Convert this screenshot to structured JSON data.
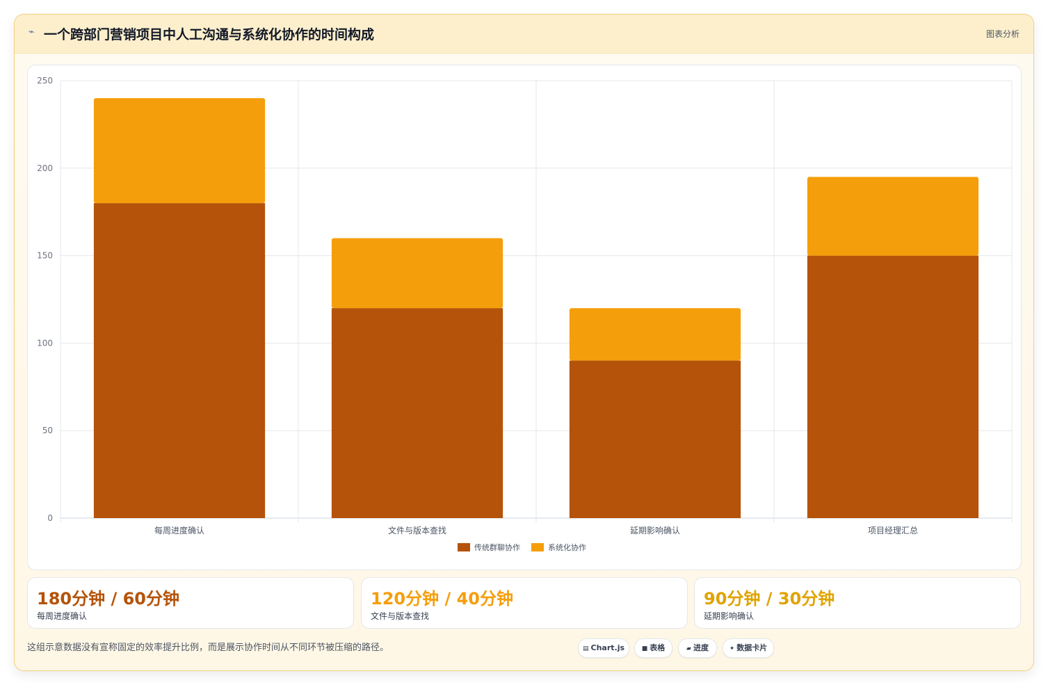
{
  "header": {
    "icon": "pulse-icon",
    "title": "一个跨部门营销项目中人工沟通与系统化协作的时间构成",
    "link_label": "图表分析"
  },
  "chart_data": {
    "type": "bar",
    "stacked": true,
    "categories": [
      "每周进度确认",
      "文件与版本查找",
      "延期影响确认",
      "项目经理汇总"
    ],
    "series": [
      {
        "name": "传统群聊协作",
        "values": [
          180,
          120,
          90,
          150
        ],
        "color": "#b45309"
      },
      {
        "name": "系统化协作",
        "values": [
          60,
          40,
          30,
          45
        ],
        "color": "#f59e0b"
      }
    ],
    "ylim": [
      0,
      250
    ],
    "yticks": [
      0,
      50,
      100,
      150,
      200,
      250
    ],
    "grid": true,
    "legend": "bottom"
  },
  "stats": [
    {
      "value": "180分钟 / 60分钟",
      "label": "每周进度确认",
      "color": "#b45309"
    },
    {
      "value": "120分钟 / 40分钟",
      "label": "文件与版本查找",
      "color": "#f59e0b"
    },
    {
      "value": "90分钟 / 30分钟",
      "label": "延期影响确认",
      "color": "#e0a300"
    }
  ],
  "footnote": "这组示意数据没有宣称固定的效率提升比例，而是展示协作时间从不同环节被压缩的路径。",
  "pills": [
    {
      "icon": "chart-icon",
      "glyph": "▤",
      "label": "Chart.js"
    },
    {
      "icon": "table-icon",
      "glyph": "■",
      "label": "表格"
    },
    {
      "icon": "progress-icon",
      "glyph": "▰",
      "label": "进度"
    },
    {
      "icon": "sparkle-icon",
      "glyph": "✦",
      "label": "数据卡片"
    }
  ]
}
